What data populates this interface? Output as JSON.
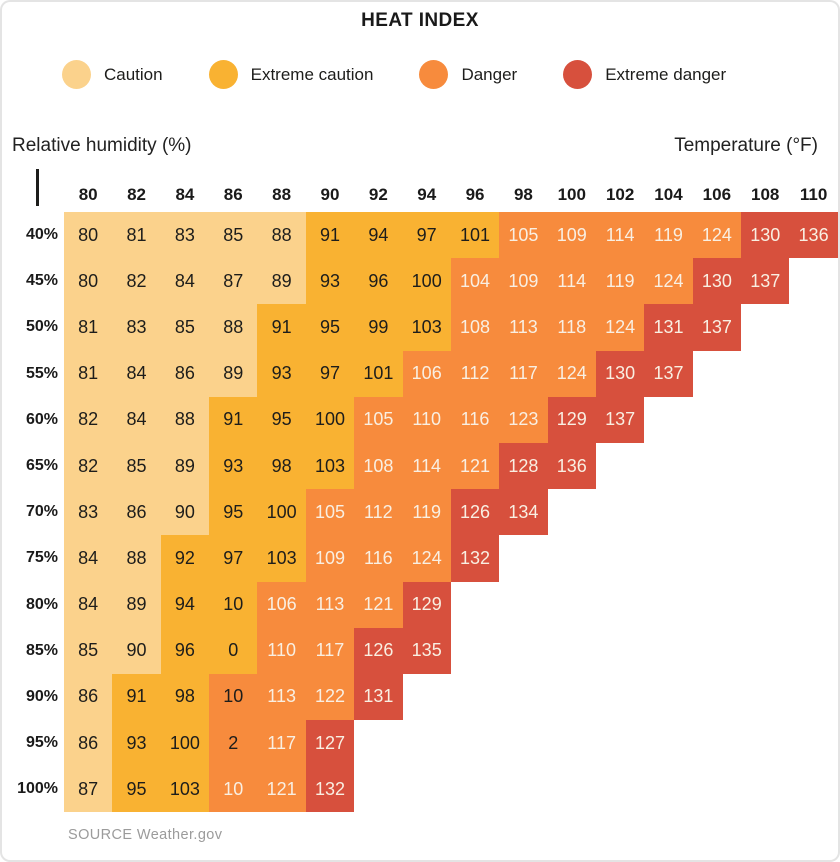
{
  "title": "HEAT INDEX",
  "legend": [
    {
      "label": "Caution",
      "color": "#FBD28C"
    },
    {
      "label": "Extreme caution",
      "color": "#F9B232"
    },
    {
      "label": "Danger",
      "color": "#F78B3D"
    },
    {
      "label": "Extreme danger",
      "color": "#D7503D"
    }
  ],
  "axis": {
    "left_label": "Relative humidity (%)",
    "right_label": "Temperature (°F)"
  },
  "source": "SOURCE Weather.gov",
  "chart_data": {
    "type": "heatmap",
    "title": "HEAT INDEX",
    "xlabel": "Temperature (°F)",
    "ylabel": "Relative humidity (%)",
    "x_ticks": [
      "80",
      "82",
      "84",
      "86",
      "88",
      "90",
      "92",
      "94",
      "96",
      "98",
      "100",
      "102",
      "104",
      "106",
      "108",
      "110"
    ],
    "y_ticks": [
      "40%",
      "45%",
      "50%",
      "55%",
      "60%",
      "65%",
      "70%",
      "75%",
      "80%",
      "85%",
      "90%",
      "95%",
      "100%"
    ],
    "legend_position": "top",
    "category_names": {
      "c": "Caution",
      "e": "Extreme caution",
      "d": "Danger",
      "x": "Extreme danger"
    },
    "colors": {
      "c": "#FBD28C",
      "e": "#F9B232",
      "d": "#F78B3D",
      "x": "#D7503D"
    },
    "text_colors": {
      "dark": "#1d1d1b",
      "light": "#F9EFE2"
    },
    "rows": [
      {
        "label": "40%",
        "cells": [
          [
            "80",
            "c"
          ],
          [
            "81",
            "c"
          ],
          [
            "83",
            "c"
          ],
          [
            "85",
            "c"
          ],
          [
            "88",
            "c"
          ],
          [
            "91",
            "e"
          ],
          [
            "94",
            "e"
          ],
          [
            "97",
            "e"
          ],
          [
            "101",
            "e"
          ],
          [
            "105",
            "d"
          ],
          [
            "109",
            "d"
          ],
          [
            "114",
            "d"
          ],
          [
            "119",
            "d"
          ],
          [
            "124",
            "d"
          ],
          [
            "130",
            "x"
          ],
          [
            "136",
            "x"
          ]
        ]
      },
      {
        "label": "45%",
        "cells": [
          [
            "80",
            "c"
          ],
          [
            "82",
            "c"
          ],
          [
            "84",
            "c"
          ],
          [
            "87",
            "c"
          ],
          [
            "89",
            "c"
          ],
          [
            "93",
            "e"
          ],
          [
            "96",
            "e"
          ],
          [
            "100",
            "e"
          ],
          [
            "104",
            "d"
          ],
          [
            "109",
            "d"
          ],
          [
            "114",
            "d"
          ],
          [
            "119",
            "d"
          ],
          [
            "124",
            "d"
          ],
          [
            "130",
            "x"
          ],
          [
            "137",
            "x"
          ]
        ]
      },
      {
        "label": "50%",
        "cells": [
          [
            "81",
            "c"
          ],
          [
            "83",
            "c"
          ],
          [
            "85",
            "c"
          ],
          [
            "88",
            "c"
          ],
          [
            "91",
            "e"
          ],
          [
            "95",
            "e"
          ],
          [
            "99",
            "e"
          ],
          [
            "103",
            "e"
          ],
          [
            "108",
            "d"
          ],
          [
            "113",
            "d"
          ],
          [
            "118",
            "d"
          ],
          [
            "124",
            "d"
          ],
          [
            "131",
            "x"
          ],
          [
            "137",
            "x"
          ]
        ]
      },
      {
        "label": "55%",
        "cells": [
          [
            "81",
            "c"
          ],
          [
            "84",
            "c"
          ],
          [
            "86",
            "c"
          ],
          [
            "89",
            "c"
          ],
          [
            "93",
            "e"
          ],
          [
            "97",
            "e"
          ],
          [
            "101",
            "e"
          ],
          [
            "106",
            "d"
          ],
          [
            "112",
            "d"
          ],
          [
            "117",
            "d"
          ],
          [
            "124",
            "d"
          ],
          [
            "130",
            "x"
          ],
          [
            "137",
            "x"
          ]
        ]
      },
      {
        "label": "60%",
        "cells": [
          [
            "82",
            "c"
          ],
          [
            "84",
            "c"
          ],
          [
            "88",
            "c"
          ],
          [
            "91",
            "e"
          ],
          [
            "95",
            "e"
          ],
          [
            "100",
            "e"
          ],
          [
            "105",
            "d"
          ],
          [
            "110",
            "d"
          ],
          [
            "116",
            "d"
          ],
          [
            "123",
            "d"
          ],
          [
            "129",
            "x"
          ],
          [
            "137",
            "x"
          ]
        ]
      },
      {
        "label": "65%",
        "cells": [
          [
            "82",
            "c"
          ],
          [
            "85",
            "c"
          ],
          [
            "89",
            "c"
          ],
          [
            "93",
            "e"
          ],
          [
            "98",
            "e"
          ],
          [
            "103",
            "e"
          ],
          [
            "108",
            "d"
          ],
          [
            "114",
            "d"
          ],
          [
            "121",
            "d"
          ],
          [
            "128",
            "x"
          ],
          [
            "136",
            "x"
          ]
        ]
      },
      {
        "label": "70%",
        "cells": [
          [
            "83",
            "c"
          ],
          [
            "86",
            "c"
          ],
          [
            "90",
            "c"
          ],
          [
            "95",
            "e"
          ],
          [
            "100",
            "e"
          ],
          [
            "105",
            "d"
          ],
          [
            "112",
            "d"
          ],
          [
            "119",
            "d"
          ],
          [
            "126",
            "x"
          ],
          [
            "134",
            "x"
          ]
        ]
      },
      {
        "label": "75%",
        "cells": [
          [
            "84",
            "c"
          ],
          [
            "88",
            "c"
          ],
          [
            "92",
            "e"
          ],
          [
            "97",
            "e"
          ],
          [
            "103",
            "e"
          ],
          [
            "109",
            "d"
          ],
          [
            "116",
            "d"
          ],
          [
            "124",
            "d"
          ],
          [
            "132",
            "x"
          ]
        ]
      },
      {
        "label": "80%",
        "cells": [
          [
            "84",
            "c"
          ],
          [
            "89",
            "c"
          ],
          [
            "94",
            "e"
          ],
          [
            "10",
            "e"
          ],
          [
            "106",
            "d"
          ],
          [
            "113",
            "d"
          ],
          [
            "121",
            "d"
          ],
          [
            "129",
            "x"
          ]
        ]
      },
      {
        "label": "85%",
        "cells": [
          [
            "85",
            "c"
          ],
          [
            "90",
            "c"
          ],
          [
            "96",
            "e"
          ],
          [
            "0",
            "e"
          ],
          [
            "110",
            "d"
          ],
          [
            "117",
            "d"
          ],
          [
            "126",
            "x"
          ],
          [
            "135",
            "x"
          ]
        ]
      },
      {
        "label": "90%",
        "cells": [
          [
            "86",
            "c"
          ],
          [
            "91",
            "e"
          ],
          [
            "98",
            "e"
          ],
          [
            "10",
            "d",
            "k"
          ],
          [
            "113",
            "d"
          ],
          [
            "122",
            "d"
          ],
          [
            "131",
            "x"
          ]
        ]
      },
      {
        "label": "95%",
        "cells": [
          [
            "86",
            "c"
          ],
          [
            "93",
            "e"
          ],
          [
            "100",
            "e"
          ],
          [
            "2",
            "d",
            "k"
          ],
          [
            "117",
            "d"
          ],
          [
            "127",
            "x"
          ]
        ]
      },
      {
        "label": "100%",
        "cells": [
          [
            "87",
            "c"
          ],
          [
            "95",
            "e"
          ],
          [
            "103",
            "e"
          ],
          [
            "10",
            "d"
          ],
          [
            "121",
            "d"
          ],
          [
            "132",
            "x"
          ]
        ]
      }
    ]
  }
}
